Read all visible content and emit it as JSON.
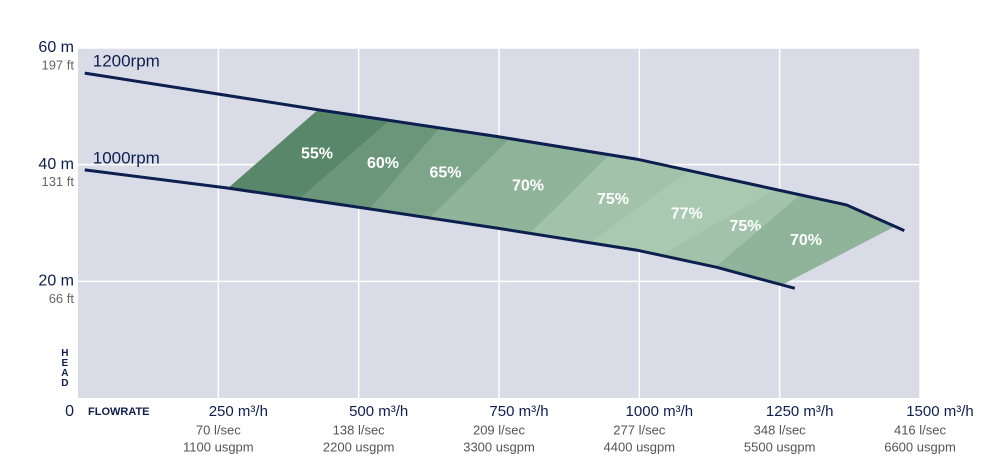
{
  "chart_data": {
    "type": "line",
    "xlabel": "FLOWRATE",
    "ylabel": "HEAD",
    "xlim": [
      0,
      1500
    ],
    "ylim": [
      0,
      60
    ],
    "xticks": [
      {
        "value": 250,
        "label": "250 m³/h"
      },
      {
        "value": 500,
        "label": "500 m³/h"
      },
      {
        "value": 750,
        "label": "750 m³/h"
      },
      {
        "value": 1000,
        "label": "1000 m³/h"
      },
      {
        "value": 1250,
        "label": "1250 m³/h"
      },
      {
        "value": 1500,
        "label": "1500 m³/h"
      }
    ],
    "xtick_sublabels": [
      [
        "70 l/sec",
        "1100 usgpm"
      ],
      [
        "138 l/sec",
        "2200 usgpm"
      ],
      [
        "209 l/sec",
        "3300 usgpm"
      ],
      [
        "277 l/sec",
        "4400 usgpm"
      ],
      [
        "348 l/sec",
        "5500 usgpm"
      ],
      [
        "416 l/sec",
        "6600 usgpm"
      ]
    ],
    "yticks": [
      0,
      {
        "value": 20,
        "label": "20 m"
      },
      {
        "value": 40,
        "label": "40 m"
      },
      {
        "value": 60,
        "label": "60 m"
      }
    ],
    "ytick_sublabels": [
      null,
      "66 ft",
      "131 ft",
      "197 ft"
    ],
    "grid": true,
    "series": [
      {
        "name": "1200rpm",
        "color": "#0d1f4e",
        "x": [
          12,
          429,
          748,
          998,
          1245,
          1369,
          1472
        ],
        "values": [
          55.7,
          49.4,
          44.8,
          40.9,
          35.7,
          33.1,
          28.7
        ]
      },
      {
        "name": "1000rpm",
        "color": "#0d1f4e",
        "x": [
          12,
          266,
          500,
          748,
          998,
          1138,
          1277
        ],
        "values": [
          39.1,
          36,
          32.7,
          29.1,
          25.3,
          22.4,
          18.8
        ]
      }
    ],
    "efficiency": {
      "values": [
        55,
        60,
        65,
        70,
        75,
        77,
        75,
        70
      ],
      "value_labels": [
        "55%",
        "60%",
        "65%",
        "70%",
        "75%",
        "77%",
        "75%",
        "70%"
      ]
    }
  }
}
